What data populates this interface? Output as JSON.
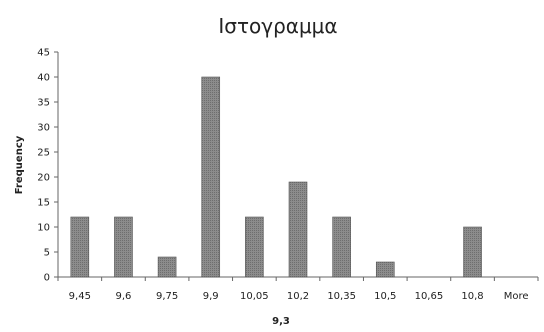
{
  "chart_data": {
    "type": "bar",
    "title": "Ιστογραμμα",
    "xlabel": "9,3",
    "ylabel": "Frequency",
    "categories": [
      "9,45",
      "9,6",
      "9,75",
      "9,9",
      "10,05",
      "10,2",
      "10,35",
      "10,5",
      "10,65",
      "10,8",
      "More"
    ],
    "values": [
      12,
      12,
      4,
      40,
      12,
      19,
      12,
      3,
      0,
      10,
      0
    ],
    "ylim": [
      0,
      45
    ],
    "yticks": [
      0,
      5,
      10,
      15,
      20,
      25,
      30,
      35,
      40,
      45
    ],
    "grid": false,
    "legend": "none",
    "bar_color": "#8c8c8c"
  }
}
